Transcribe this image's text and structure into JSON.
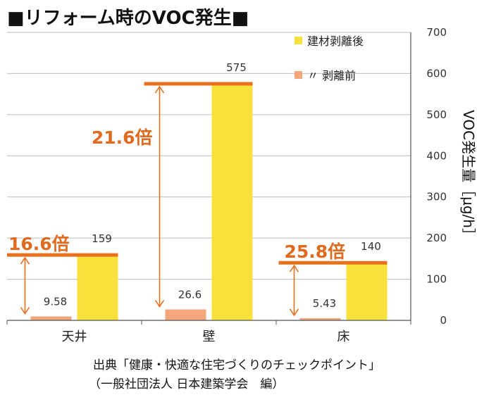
{
  "title": "■リフォーム時のVOC発生■",
  "chart_data": {
    "type": "bar",
    "categories": [
      "天井",
      "壁",
      "床"
    ],
    "series": [
      {
        "name": "〃 剥離前",
        "values": [
          9.58,
          26.6,
          5.43
        ],
        "color": "#f4a77a"
      },
      {
        "name": "建材剥離後",
        "values": [
          159,
          575,
          140
        ],
        "color": "#f7e13a"
      }
    ],
    "ratios": [
      "16.6倍",
      "21.6倍",
      "25.8倍"
    ],
    "ylabel": "VOC発生量［μg/h］",
    "ylim": [
      0,
      700
    ],
    "yticks": [
      0,
      100,
      200,
      300,
      400,
      500,
      600,
      700
    ],
    "grid": true,
    "legend_position": "top-right",
    "axis_position": "right",
    "accent_color": "#e8711f"
  },
  "source": {
    "line1": "出典「健康・快適な住宅づくりのチェックポイント」",
    "line2": "（一般社団法人 日本建築学会　編）"
  }
}
